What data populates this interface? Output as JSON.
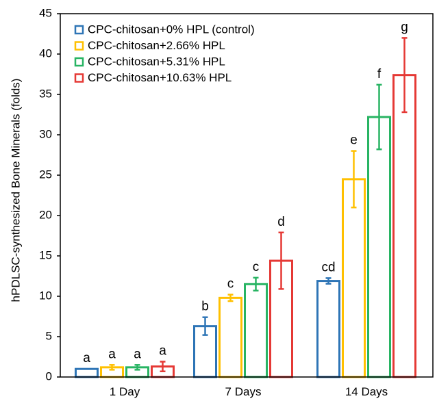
{
  "chart_data": {
    "type": "bar",
    "title": "",
    "xlabel": "",
    "ylabel": "hPDLSC-synthesized Bone Minerals (folds)",
    "ylim": [
      0,
      45
    ],
    "yticks": [
      0,
      5,
      10,
      15,
      20,
      25,
      30,
      35,
      40,
      45
    ],
    "grid": false,
    "legend_position": "top-left",
    "categories": [
      "1 Day",
      "7 Days",
      "14 Days"
    ],
    "series": [
      {
        "name": "CPC-chitosan+0% HPL (control)",
        "color": "#2E75B6",
        "values": [
          1.0,
          6.3,
          11.9
        ],
        "errors": [
          0.0,
          1.1,
          0.35
        ],
        "labels": [
          "a",
          "b",
          "cd"
        ]
      },
      {
        "name": "CPC-chitosan+2.66% HPL",
        "color": "#FFC000",
        "values": [
          1.2,
          9.8,
          24.5
        ],
        "errors": [
          0.3,
          0.4,
          3.5
        ],
        "labels": [
          "a",
          "c",
          "e"
        ]
      },
      {
        "name": "CPC-chitosan+5.31% HPL",
        "color": "#28B463",
        "values": [
          1.2,
          11.5,
          32.2
        ],
        "errors": [
          0.3,
          0.8,
          4.0
        ],
        "labels": [
          "a",
          "c",
          "f"
        ]
      },
      {
        "name": "CPC-chitosan+10.63% HPL",
        "color": "#E53935",
        "values": [
          1.3,
          14.4,
          37.4
        ],
        "errors": [
          0.6,
          3.5,
          4.6
        ],
        "labels": [
          "a",
          "d",
          "g"
        ]
      }
    ]
  }
}
